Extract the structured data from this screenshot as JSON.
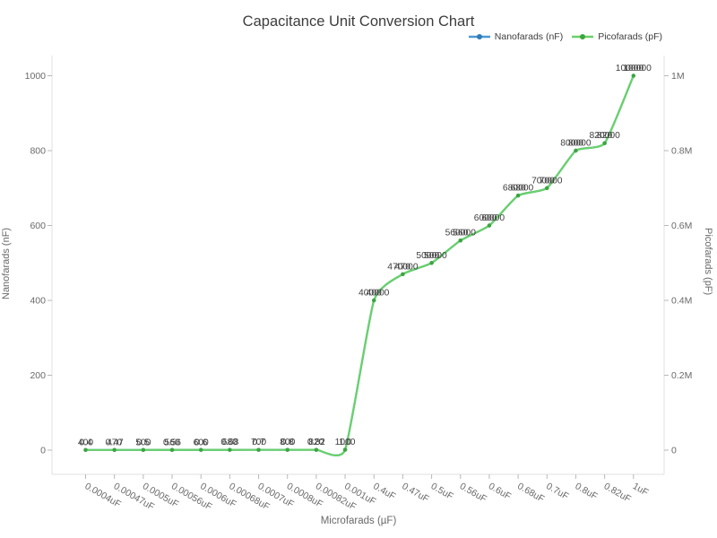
{
  "title": "Capacitance Unit Conversion Chart",
  "legend": {
    "items": [
      {
        "label": "Nanofarads (nF)",
        "line_color": "#4e97d1",
        "marker_color": "#2e7cb8"
      },
      {
        "label": "Picofarads (pF)",
        "line_color": "#68d168",
        "marker_color": "#3da53d"
      }
    ]
  },
  "axes": {
    "x": {
      "title": "Microfarads (µF)"
    },
    "y_left": {
      "title": "Nanofarads (nF)",
      "tick_labels": [
        "0",
        "200",
        "400",
        "600",
        "800",
        "1000"
      ],
      "tick_values": [
        0,
        200,
        400,
        600,
        800,
        1000
      ]
    },
    "y_right": {
      "title": "Picofarads (pF)",
      "tick_labels": [
        "0",
        "0.2M",
        "0.4M",
        "0.6M",
        "0.8M",
        "1M"
      ],
      "tick_values": [
        0,
        200000,
        400000,
        600000,
        800000,
        1000000
      ]
    }
  },
  "chart_data": {
    "type": "line",
    "title": "Capacitance Unit Conversion Chart",
    "xlabel": "Microfarads (µF)",
    "categories": [
      "0.0004uF",
      "0.00047uF",
      "0.0005uF",
      "0.00056uF",
      "0.0006uF",
      "0.00068uF",
      "0.0007uF",
      "0.0008uF",
      "0.00082uF",
      "0.001uF",
      "0.4uF",
      "0.47uF",
      "0.5uF",
      "0.56uF",
      "0.6uF",
      "0.68uF",
      "0.7uF",
      "0.8uF",
      "0.82uF",
      "1uF"
    ],
    "series": [
      {
        "name": "Nanofarads (nF)",
        "axis": "left",
        "ylabel": "Nanofarads (nF)",
        "ylim": [
          0,
          1000
        ],
        "values": [
          0.4,
          0.47,
          0.5,
          0.56,
          0.6,
          0.68,
          0.7,
          0.8,
          0.82,
          1,
          400,
          470,
          500,
          560,
          600,
          680,
          700,
          800,
          820,
          1000
        ],
        "labels": [
          "0.4",
          "0.47",
          "0.5",
          "0.56",
          "0.6",
          "0.68",
          "0.7",
          "0.8",
          "0.82",
          "1.0",
          "400",
          "470",
          "500",
          "560",
          "600",
          "680",
          "700",
          "800",
          "820",
          "1000"
        ],
        "line_color": "#4e97d1",
        "marker_color": "#2e7cb8"
      },
      {
        "name": "Picofarads (pF)",
        "axis": "right",
        "ylabel": "Picofarads (pF)",
        "ylim": [
          0,
          1000000
        ],
        "values": [
          400,
          470,
          500,
          560,
          600,
          680,
          700,
          800,
          820,
          1000,
          400000,
          470000,
          500000,
          560000,
          600000,
          680000,
          700000,
          800000,
          820000,
          1000000
        ],
        "labels": [
          "400",
          "470",
          "500",
          "560",
          "600",
          "680",
          "700",
          "800",
          "820",
          "1000",
          "400000",
          "470000",
          "500000",
          "560000",
          "600000",
          "680000",
          "700000",
          "800000",
          "820000",
          "1000000"
        ],
        "line_color": "#68d168",
        "marker_color": "#3da53d"
      }
    ],
    "grid": false,
    "legend_position": "top-right",
    "line_shape": "spline",
    "point_labels_visible": true
  }
}
